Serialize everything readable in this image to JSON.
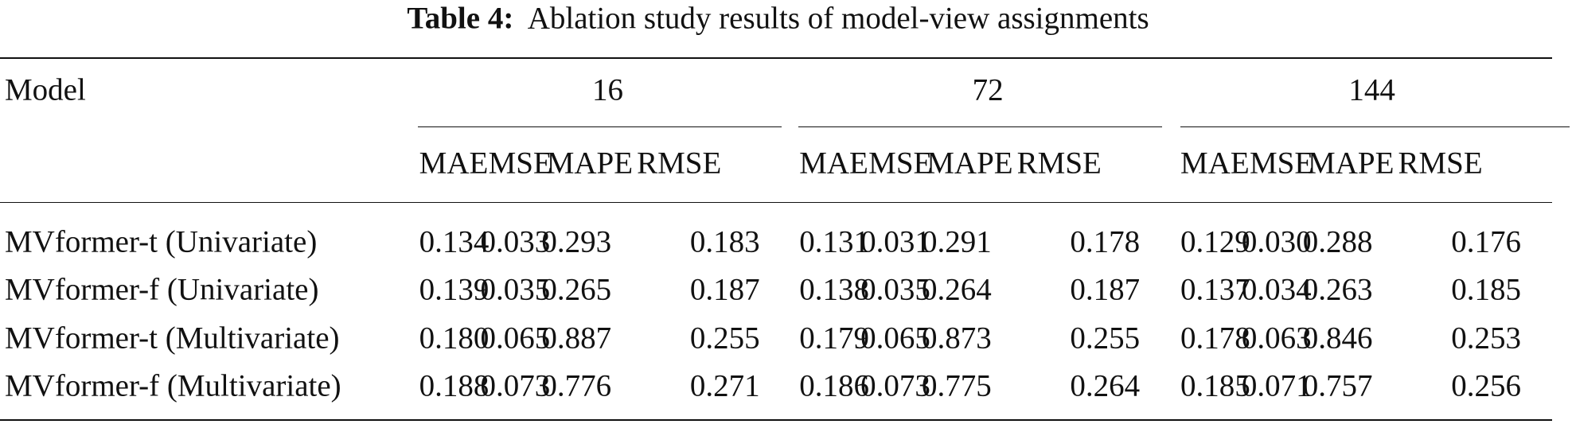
{
  "caption": {
    "label": "Table 4:",
    "text": "Ablation study results of model-view assignments"
  },
  "table": {
    "model_header": "Model",
    "groups": [
      "16",
      "72",
      "144"
    ],
    "metrics": [
      "MAE",
      "MSE",
      "MAPE",
      "RMSE"
    ],
    "rows": [
      [
        "MVformer-t (Univariate)",
        "0.134",
        "0.033",
        "0.293",
        "0.183",
        "0.131",
        "0.031",
        "0.291",
        "0.178",
        "0.129",
        "0.030",
        "0.288",
        "0.176"
      ],
      [
        "MVformer-f (Univariate)",
        "0.139",
        "0.035",
        "0.265",
        "0.187",
        "0.138",
        "0.035",
        "0.264",
        "0.187",
        "0.137",
        "0.034",
        "0.263",
        "0.185"
      ],
      [
        "MVformer-t (Multivariate)",
        "0.180",
        "0.065",
        "0.887",
        "0.255",
        "0.179",
        "0.065",
        "0.873",
        "0.255",
        "0.178",
        "0.063",
        "0.846",
        "0.253"
      ],
      [
        "MVformer-f (Multivariate)",
        "0.188",
        "0.073",
        "0.776",
        "0.271",
        "0.186",
        "0.073",
        "0.775",
        "0.264",
        "0.185",
        "0.071",
        "0.757",
        "0.256"
      ]
    ]
  }
}
